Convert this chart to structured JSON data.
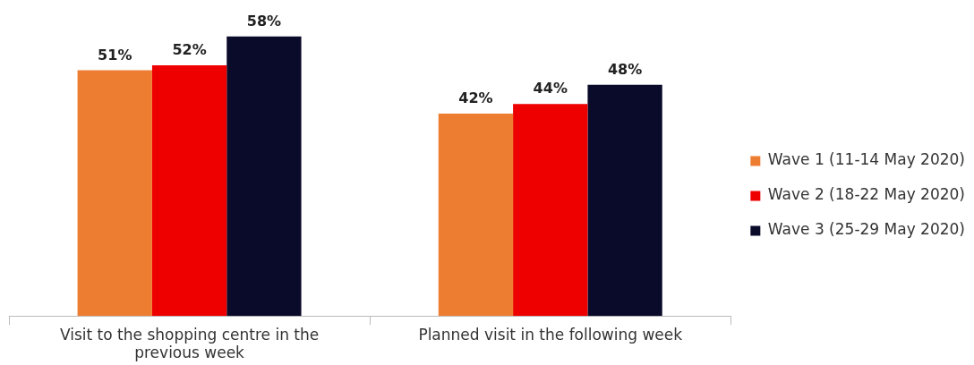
{
  "chart_data": {
    "type": "bar",
    "categories": [
      "Visit to the shopping centre in the previous week",
      "Planned visit in the following week"
    ],
    "series": [
      {
        "name": "Wave 1 (11-14 May 2020)",
        "color": "#ed7d31",
        "values": [
          51,
          42
        ],
        "value_labels": [
          "51%",
          "42%"
        ]
      },
      {
        "name": "Wave 2 (18-22 May 2020)",
        "color": "#ee0000",
        "values": [
          52,
          44
        ],
        "value_labels": [
          "52%",
          "44%"
        ]
      },
      {
        "name": "Wave 3 (25-29 May 2020)",
        "color": "#0a0a2a",
        "values": [
          58,
          48
        ],
        "value_labels": [
          "58%",
          "48%"
        ]
      }
    ],
    "legend": "right",
    "grid": false
  }
}
